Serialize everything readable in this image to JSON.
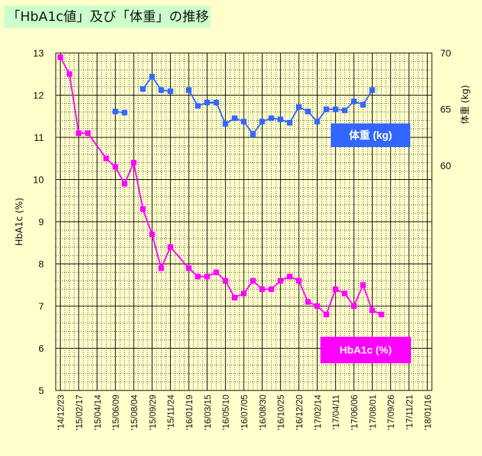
{
  "title": "「HbA1c値」及び「体重」の推移",
  "chart_data": {
    "type": "line",
    "x": [
      "'14/12/23",
      "'15/01/20",
      "'15/02/17",
      "'15/03/17",
      "'15/04/14",
      "'15/05/12",
      "'15/06/09",
      "'15/07/07",
      "'15/08/04",
      "'15/09/01",
      "'15/09/29",
      "'15/10/27",
      "'15/11/24",
      "'15/12/22",
      "'16/01/19",
      "'16/02/16",
      "'16/03/15",
      "'16/04/12",
      "'16/05/10",
      "'16/06/07",
      "'16/07/05",
      "'16/08/02",
      "'16/08/30",
      "'16/09/27",
      "'16/10/25",
      "'16/11/22",
      "'16/12/20",
      "'17/01/17",
      "'17/02/14",
      "'17/03/14",
      "'17/04/11",
      "'17/05/09",
      "'17/06/06",
      "'17/07/04",
      "'17/08/01",
      "'17/08/29",
      "'17/09/26",
      "'17/10/24",
      "'17/11/21",
      "'17/12/19",
      "'18/01/16"
    ],
    "x_tick_labels": [
      "'14/12/23",
      "'15/02/17",
      "'15/04/14",
      "'15/06/09",
      "'15/08/04",
      "'15/09/29",
      "'15/11/24",
      "'16/01/19",
      "'16/03/15",
      "'16/05/10",
      "'16/07/05",
      "'16/08/30",
      "'16/10/25",
      "'16/12/20",
      "'17/02/14",
      "'17/04/11",
      "'17/06/06",
      "'17/08/01",
      "'17/09/26",
      "'17/11/21",
      "'18/01/16"
    ],
    "left_axis": {
      "label": "HbA1c (%)",
      "ylim": [
        5,
        13
      ],
      "ticks": [
        "5",
        "6",
        "7",
        "8",
        "9",
        "10",
        "11",
        "12",
        "13"
      ]
    },
    "right_axis": {
      "label": "体重 (kg)",
      "ylim": [
        40,
        70
      ],
      "ticks": [
        "60",
        "65",
        "70"
      ]
    },
    "series": [
      {
        "name": "HbA1c (%)",
        "axis": "left",
        "color": "#ff00ff",
        "points": [
          [
            0,
            12.9
          ],
          [
            1,
            12.5
          ],
          [
            2,
            11.1
          ],
          [
            3,
            11.1
          ],
          [
            5,
            10.5
          ],
          [
            6,
            10.3
          ],
          [
            7,
            9.9
          ],
          [
            8,
            10.4
          ],
          [
            9,
            9.3
          ],
          [
            10,
            8.7
          ],
          [
            11,
            7.9
          ],
          [
            12,
            8.4
          ],
          [
            14,
            7.9
          ],
          [
            15,
            7.7
          ],
          [
            16,
            7.7
          ],
          [
            17,
            7.8
          ],
          [
            18,
            7.6
          ],
          [
            19,
            7.2
          ],
          [
            20,
            7.3
          ],
          [
            21,
            7.6
          ],
          [
            22,
            7.4
          ],
          [
            23,
            7.4
          ],
          [
            24,
            7.6
          ],
          [
            25,
            7.7
          ],
          [
            26,
            7.6
          ],
          [
            27,
            7.1
          ],
          [
            28,
            7.0
          ],
          [
            29,
            6.8
          ],
          [
            30,
            7.4
          ],
          [
            31,
            7.3
          ],
          [
            32,
            7.0
          ],
          [
            33,
            7.5
          ],
          [
            34,
            6.9
          ],
          [
            35,
            6.8
          ]
        ]
      },
      {
        "name": "体重 (kg)",
        "axis": "right",
        "color": "#3366ff",
        "points": [
          [
            6,
            64.8
          ],
          [
            7,
            64.7
          ],
          [
            9,
            66.8
          ],
          [
            10,
            67.9
          ],
          [
            11,
            66.7
          ],
          [
            12,
            66.6
          ],
          [
            14,
            66.7
          ],
          [
            15,
            65.3
          ],
          [
            16,
            65.6
          ],
          [
            17,
            65.6
          ],
          [
            18,
            63.7
          ],
          [
            19,
            64.2
          ],
          [
            20,
            63.9
          ],
          [
            21,
            62.8
          ],
          [
            22,
            63.9
          ],
          [
            23,
            64.2
          ],
          [
            24,
            64.1
          ],
          [
            25,
            63.8
          ],
          [
            26,
            65.2
          ],
          [
            27,
            64.8
          ],
          [
            28,
            63.9
          ],
          [
            29,
            65.0
          ],
          [
            30,
            65.0
          ],
          [
            31,
            64.9
          ],
          [
            32,
            65.7
          ],
          [
            33,
            65.4
          ],
          [
            34,
            66.7
          ]
        ]
      }
    ],
    "legend": [
      {
        "label": "体重 (kg)",
        "color": "#3366ff",
        "placement": "upper-right"
      },
      {
        "label": "HbA1c (%)",
        "color": "#ff00ff",
        "placement": "lower-right"
      }
    ],
    "grid": true
  }
}
